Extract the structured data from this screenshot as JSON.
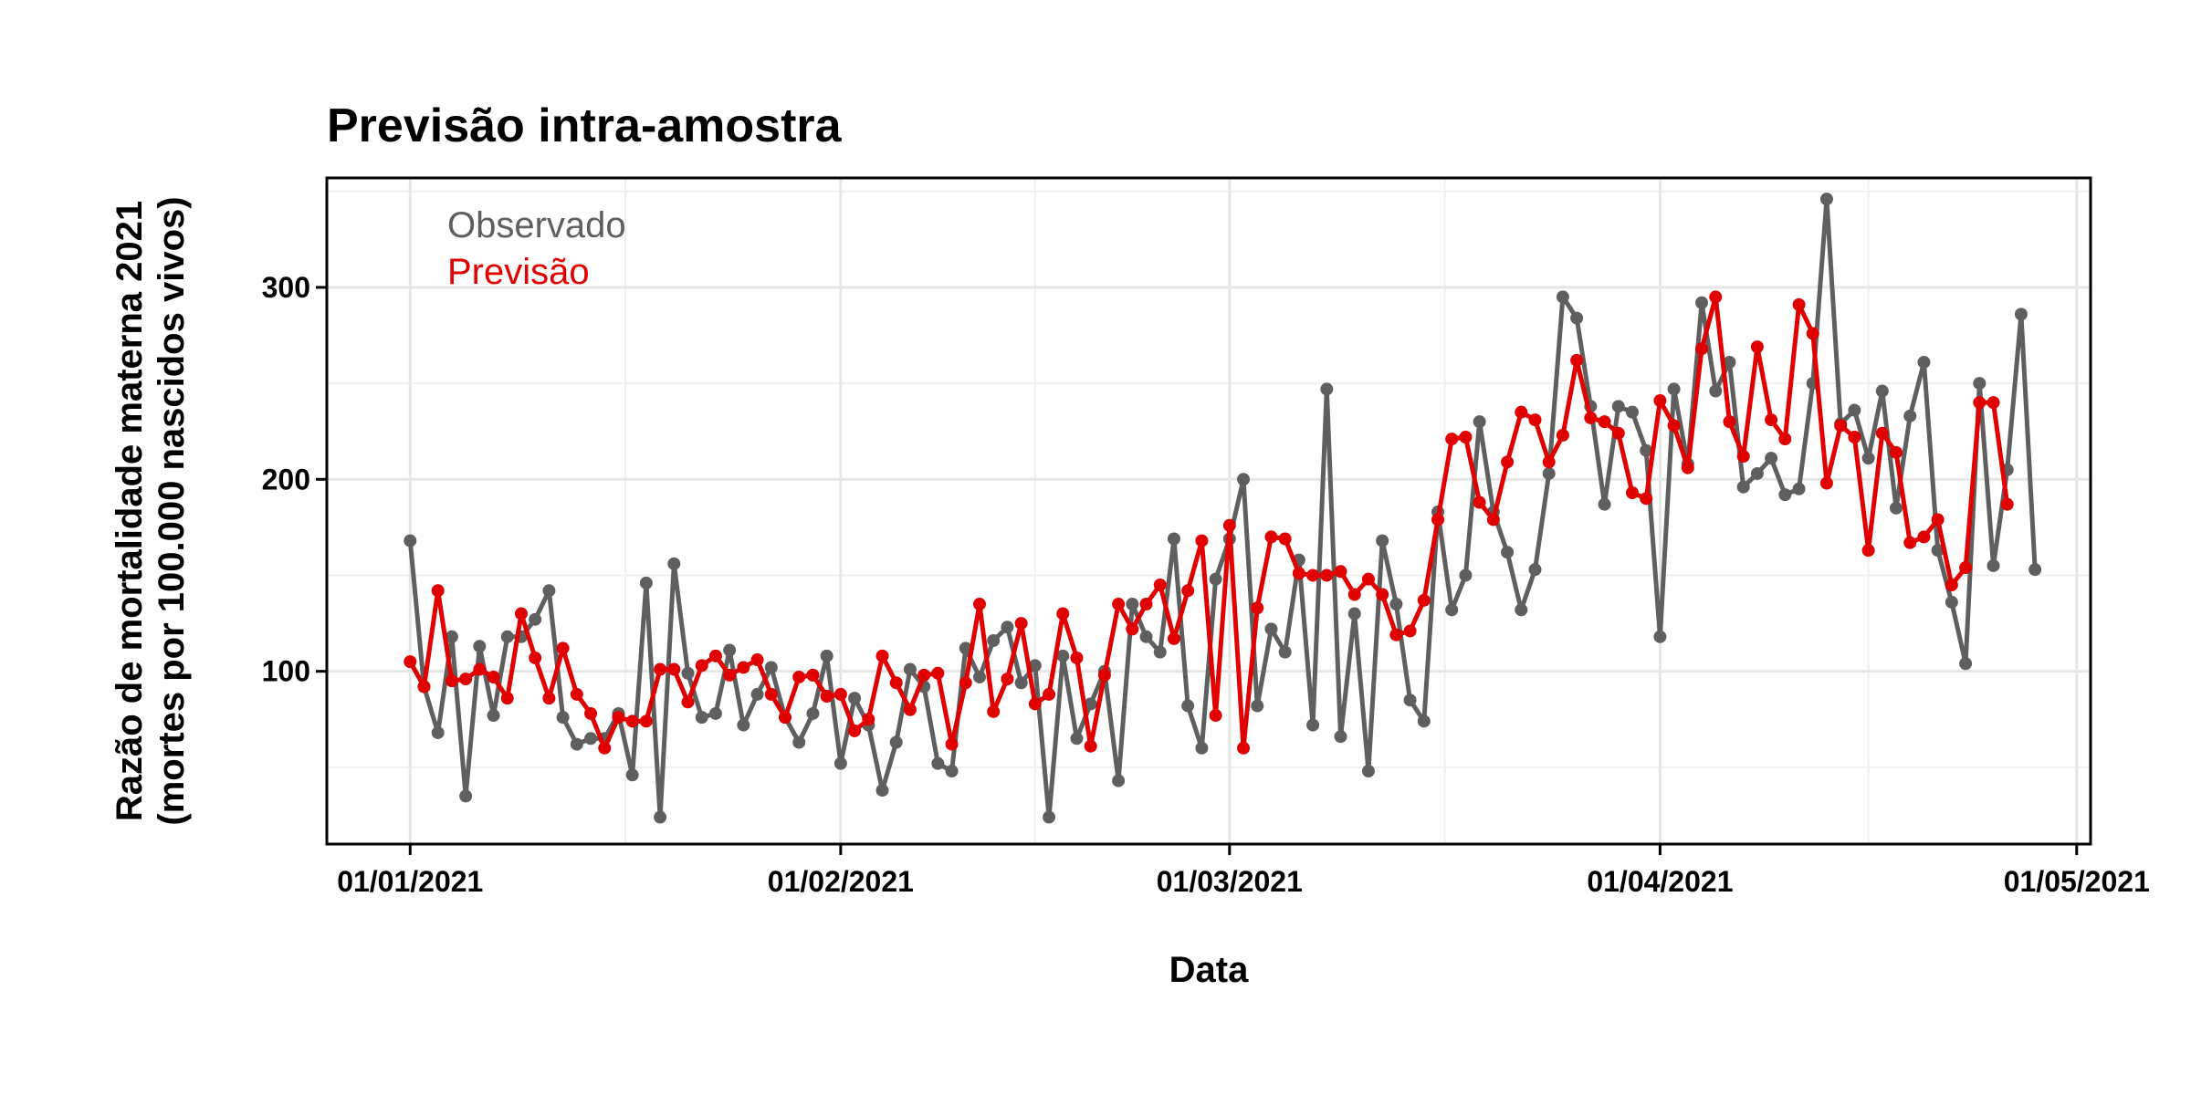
{
  "chart_data": {
    "type": "line",
    "title": "Previsão intra-amostra",
    "xlabel": "Data",
    "ylabel_line1": "Razão de mortalidade materna 2021",
    "ylabel_line2": "(mortes por 100.000 nascidos vivos)",
    "x_start": "2021-01-01",
    "x_end": "2021-04-25",
    "xlim": [
      "2020-12-26",
      "2021-05-02"
    ],
    "ylim": [
      10,
      357
    ],
    "x_ticks": [
      {
        "date": "2021-01-01",
        "label": "01/01/2021"
      },
      {
        "date": "2021-02-01",
        "label": "01/02/2021"
      },
      {
        "date": "2021-03-01",
        "label": "01/03/2021"
      },
      {
        "date": "2021-04-01",
        "label": "01/04/2021"
      },
      {
        "date": "2021-05-01",
        "label": "01/05/2021"
      }
    ],
    "y_ticks": [
      100,
      200,
      300
    ],
    "grid": true,
    "legend_position": "top-left",
    "series": [
      {
        "name": "Observado",
        "color": "#5f5f5f",
        "values": [
          168,
          92,
          68,
          118,
          35,
          113,
          77,
          118,
          118,
          127,
          142,
          76,
          62,
          65,
          65,
          78,
          46,
          146,
          24,
          156,
          99,
          76,
          78,
          111,
          72,
          88,
          102,
          76,
          63,
          78,
          108,
          52,
          86,
          72,
          38,
          63,
          101,
          92,
          52,
          48,
          112,
          97,
          116,
          123,
          94,
          103,
          24,
          108,
          65,
          83,
          100,
          43,
          135,
          118,
          110,
          169,
          82,
          60,
          148,
          169,
          200,
          82,
          122,
          110,
          158,
          72,
          247,
          66,
          130,
          48,
          168,
          135,
          85,
          74,
          183,
          132,
          150,
          230,
          183,
          162,
          132,
          153,
          203,
          295,
          284,
          238,
          187,
          238,
          235,
          215,
          118,
          247,
          208,
          292,
          246,
          261,
          196,
          203,
          211,
          192,
          195,
          250,
          346,
          229,
          236,
          211,
          246,
          185,
          233,
          261,
          163,
          136,
          104,
          250,
          155,
          205,
          286,
          153
        ]
      },
      {
        "name": "Previsão",
        "color": "#e00000",
        "values": [
          105,
          92,
          142,
          95,
          96,
          101,
          97,
          86,
          130,
          107,
          86,
          112,
          88,
          78,
          60,
          76,
          74,
          74,
          101,
          101,
          84,
          103,
          108,
          98,
          102,
          106,
          88,
          76,
          97,
          98,
          87,
          88,
          69,
          75,
          108,
          94,
          80,
          98,
          99,
          62,
          94,
          135,
          79,
          96,
          125,
          83,
          88,
          130,
          107,
          61,
          98,
          135,
          122,
          135,
          145,
          117,
          142,
          168,
          77,
          176,
          60,
          133,
          170,
          169,
          151,
          150,
          150,
          152,
          140,
          148,
          140,
          119,
          121,
          137,
          179,
          221,
          222,
          188,
          179,
          209,
          235,
          231,
          209,
          223,
          262,
          232,
          230,
          224,
          193,
          190,
          241,
          228,
          206,
          268,
          295,
          230,
          212,
          269,
          231,
          221,
          291,
          276,
          198,
          228,
          222,
          163,
          224,
          214,
          167,
          170,
          179,
          145,
          154,
          240,
          240,
          187
        ]
      }
    ]
  }
}
